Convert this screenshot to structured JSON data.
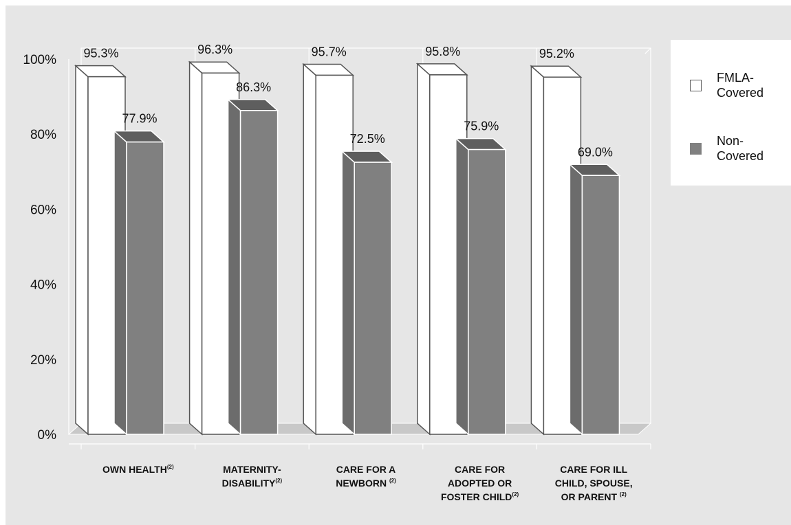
{
  "chart_data": {
    "type": "bar",
    "categories": [
      [
        "OWN HEALTH"
      ],
      [
        "MATERNITY-",
        "DISABILITY"
      ],
      [
        "CARE FOR A",
        "NEWBORN "
      ],
      [
        "CARE FOR",
        "ADOPTED OR",
        "FOSTER CHILD"
      ],
      [
        "CARE FOR ILL",
        "CHILD, SPOUSE,",
        "OR PARENT "
      ]
    ],
    "category_note": "(2)",
    "series": [
      {
        "name": "FMLA-Covered",
        "legend_lines": [
          "FMLA-",
          "Covered"
        ],
        "color": "#ffffff",
        "values": [
          95.3,
          96.3,
          95.7,
          95.8,
          95.2
        ]
      },
      {
        "name": "Non-Covered",
        "legend_lines": [
          "Non-",
          "Covered"
        ],
        "color": "#808080",
        "values": [
          77.9,
          86.3,
          72.5,
          75.9,
          69.0
        ]
      }
    ],
    "data_labels": [
      [
        "95.3%",
        "96.3%",
        "95.7%",
        "95.8%",
        "95.2%"
      ],
      [
        "77.9%",
        "86.3%",
        "72.5%",
        "75.9%",
        "69.0%"
      ]
    ],
    "yticks": [
      "0%",
      "20%",
      "40%",
      "60%",
      "80%",
      "100%"
    ],
    "ylim": [
      0,
      100
    ],
    "grid": "vertical lines between categories",
    "legend_position": "right"
  }
}
